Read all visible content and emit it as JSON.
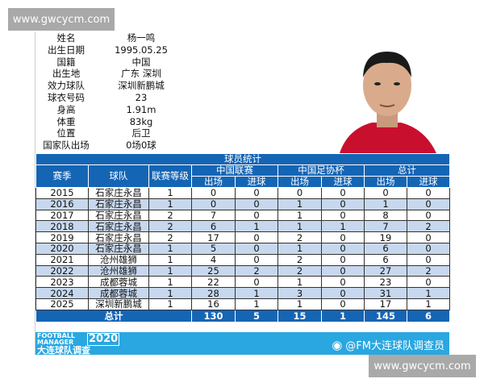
{
  "watermark": "www.gwcycm.com",
  "profile": [
    {
      "label": "姓名",
      "value": "杨一鸣"
    },
    {
      "label": "出生日期",
      "value": "1995.05.25"
    },
    {
      "label": "国籍",
      "value": "中国"
    },
    {
      "label": "出生地",
      "value": "广东  深圳"
    },
    {
      "label": "效力球队",
      "value": "深圳新鹏城"
    },
    {
      "label": "球衣号码",
      "value": "23"
    },
    {
      "label": "身高",
      "value": "1.91m"
    },
    {
      "label": "体重",
      "value": "83kg"
    },
    {
      "label": "位置",
      "value": "后卫"
    },
    {
      "label": "国家队出场",
      "value": "0场0球"
    }
  ],
  "table": {
    "title": "球员统计",
    "headers": {
      "season": "赛季",
      "team": "球队",
      "level": "联赛等级",
      "league": "中国联赛",
      "cup": "中国足协杯",
      "total": "总计",
      "apps": "出场",
      "goals": "进球"
    },
    "rows": [
      [
        "2015",
        "石家庄永昌",
        "1",
        "0",
        "0",
        "0",
        "0",
        "0",
        "0"
      ],
      [
        "2016",
        "石家庄永昌",
        "1",
        "0",
        "0",
        "1",
        "0",
        "1",
        "0"
      ],
      [
        "2017",
        "石家庄永昌",
        "2",
        "7",
        "0",
        "1",
        "0",
        "8",
        "0"
      ],
      [
        "2018",
        "石家庄永昌",
        "2",
        "6",
        "1",
        "1",
        "1",
        "7",
        "2"
      ],
      [
        "2019",
        "石家庄永昌",
        "2",
        "17",
        "0",
        "2",
        "0",
        "19",
        "0"
      ],
      [
        "2020",
        "石家庄永昌",
        "1",
        "5",
        "0",
        "1",
        "0",
        "6",
        "0"
      ],
      [
        "2021",
        "沧州雄狮",
        "1",
        "4",
        "0",
        "2",
        "0",
        "6",
        "0"
      ],
      [
        "2022",
        "沧州雄狮",
        "1",
        "25",
        "2",
        "2",
        "0",
        "27",
        "2"
      ],
      [
        "2023",
        "成都蓉城",
        "1",
        "22",
        "0",
        "1",
        "0",
        "23",
        "0"
      ],
      [
        "2024",
        "成都蓉城",
        "1",
        "28",
        "1",
        "3",
        "0",
        "31",
        "1"
      ],
      [
        "2025",
        "深圳新鹏城",
        "1",
        "16",
        "1",
        "1",
        "0",
        "17",
        "1"
      ]
    ],
    "total": {
      "label": "总计",
      "values": [
        "130",
        "5",
        "15",
        "1",
        "145",
        "6"
      ]
    }
  },
  "footer": {
    "logo_line1": "FOOTBALL",
    "logo_line2": "MANAGER",
    "logo_year": "2020",
    "logo_line3": "大连球队调查",
    "weibo": "@FM大连球队调查员"
  }
}
